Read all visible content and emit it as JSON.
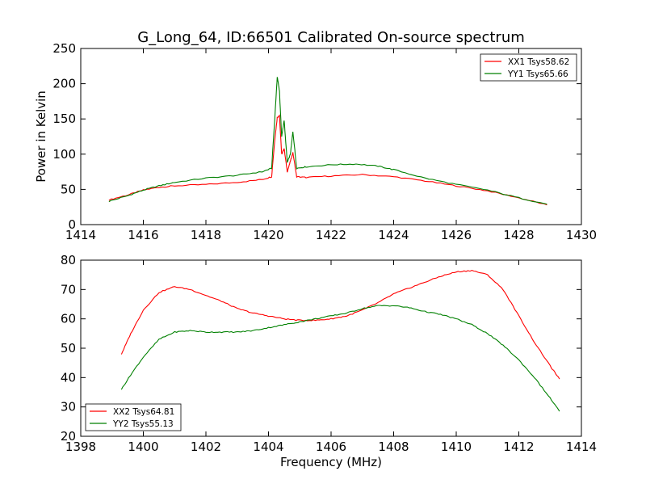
{
  "chart_data": [
    {
      "type": "line",
      "title": "G_Long_64, ID:66501 Calibrated On-source spectrum",
      "xlabel": "",
      "ylabel": "Power in Kelvin",
      "xlim": [
        1414,
        1430
      ],
      "ylim": [
        0,
        250
      ],
      "xticks": [
        1414,
        1416,
        1418,
        1420,
        1422,
        1424,
        1426,
        1428,
        1430
      ],
      "yticks": [
        0,
        50,
        100,
        150,
        200,
        250
      ],
      "legend_position": "top-right",
      "colors": {
        "XX1 Tsys58.62": "#ff0000",
        "YY1 Tsys65.66": "#008000"
      },
      "series": [
        {
          "name": "XX1 Tsys58.62",
          "x": [
            1414.9,
            1415.5,
            1416.0,
            1416.5,
            1417.0,
            1418.0,
            1419.0,
            1419.8,
            1420.1,
            1420.2,
            1420.28,
            1420.35,
            1420.42,
            1420.5,
            1420.6,
            1420.7,
            1420.78,
            1420.9,
            1421.2,
            1422.0,
            1423.0,
            1424.0,
            1425.0,
            1426.0,
            1427.0,
            1428.0,
            1428.9
          ],
          "y": [
            35,
            42,
            49,
            53,
            55,
            57,
            60,
            64,
            68,
            120,
            152,
            155,
            100,
            108,
            75,
            90,
            102,
            68,
            67,
            69,
            71,
            68,
            62,
            55,
            48,
            38,
            28
          ]
        },
        {
          "name": "YY1 Tsys65.66",
          "x": [
            1414.9,
            1415.5,
            1416.0,
            1416.5,
            1417.0,
            1418.0,
            1419.0,
            1419.8,
            1420.1,
            1420.2,
            1420.28,
            1420.35,
            1420.42,
            1420.5,
            1420.6,
            1420.7,
            1420.78,
            1420.9,
            1421.2,
            1422.0,
            1422.8,
            1423.5,
            1424.0,
            1425.0,
            1426.0,
            1427.0,
            1428.0,
            1428.9
          ],
          "y": [
            33,
            41,
            49,
            55,
            60,
            66,
            70,
            75,
            80,
            150,
            210,
            190,
            125,
            148,
            88,
            100,
            132,
            80,
            82,
            85,
            86,
            83,
            78,
            66,
            57,
            49,
            38,
            29
          ]
        }
      ]
    },
    {
      "type": "line",
      "title": "",
      "xlabel": "Frequency (MHz)",
      "ylabel": "",
      "xlim": [
        1398,
        1414
      ],
      "ylim": [
        20,
        80
      ],
      "xticks": [
        1398,
        1400,
        1402,
        1404,
        1406,
        1408,
        1410,
        1412,
        1414
      ],
      "yticks": [
        20,
        30,
        40,
        50,
        60,
        70,
        80
      ],
      "legend_position": "bottom-left",
      "colors": {
        "XX2 Tsys64.81": "#ff0000",
        "YY2 Tsys55.13": "#008000"
      },
      "series": [
        {
          "name": "XX2 Tsys64.81",
          "x": [
            1399.3,
            1399.6,
            1400.0,
            1400.5,
            1401.0,
            1401.5,
            1402.0,
            1402.5,
            1403.0,
            1403.5,
            1404.0,
            1404.5,
            1405.0,
            1405.5,
            1406.0,
            1406.5,
            1407.0,
            1407.5,
            1408.0,
            1408.5,
            1409.0,
            1409.5,
            1410.0,
            1410.5,
            1411.0,
            1411.5,
            1412.0,
            1412.5,
            1413.0,
            1413.3
          ],
          "y": [
            48,
            55,
            63,
            69,
            71,
            70,
            68,
            66,
            63.5,
            62,
            61,
            60,
            59.5,
            59.5,
            60,
            61,
            63,
            65.5,
            68.5,
            70.5,
            72.5,
            74.5,
            76,
            76.5,
            75,
            70,
            61,
            52,
            44,
            39.5
          ]
        },
        {
          "name": "YY2 Tsys55.13",
          "x": [
            1399.3,
            1399.6,
            1400.0,
            1400.5,
            1401.0,
            1401.5,
            1402.0,
            1402.5,
            1403.0,
            1403.5,
            1404.0,
            1404.5,
            1405.0,
            1405.5,
            1406.0,
            1406.5,
            1407.0,
            1407.5,
            1408.0,
            1408.5,
            1409.0,
            1409.5,
            1410.0,
            1410.5,
            1411.0,
            1411.5,
            1412.0,
            1412.5,
            1413.0,
            1413.3
          ],
          "y": [
            36,
            41,
            47,
            53,
            55.5,
            56,
            55.5,
            55.5,
            55.5,
            56,
            57,
            58,
            59,
            60,
            61,
            62,
            63.5,
            64.5,
            64.5,
            63.8,
            62.5,
            61.5,
            60,
            58,
            55,
            51,
            46,
            40,
            33,
            28.5
          ]
        }
      ]
    }
  ]
}
